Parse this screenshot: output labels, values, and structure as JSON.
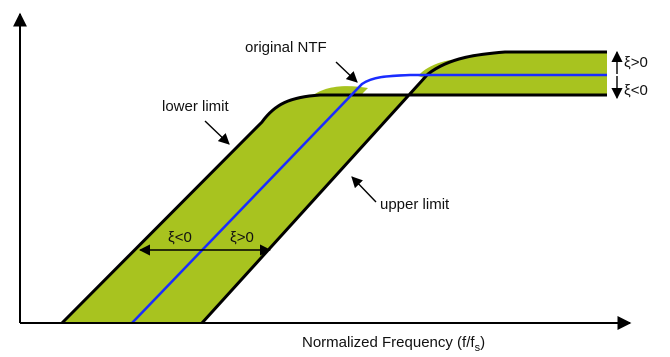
{
  "diagram": {
    "labels": {
      "original_ntf": "original NTF",
      "lower_limit": "lower limit",
      "upper_limit": "upper limit",
      "xi_pos_right": "ξ>0",
      "xi_neg_right": "ξ<0",
      "xi_neg_slope": "ξ<0",
      "xi_pos_slope": "ξ>0",
      "x_axis_main": "Normalized Frequency (f/f",
      "x_axis_sub": "s",
      "x_axis_close": ")"
    },
    "colors": {
      "band_fill": "#a8c31f",
      "ntf_line": "#1a2cff",
      "limit_line": "#000000",
      "axis": "#000000"
    }
  }
}
